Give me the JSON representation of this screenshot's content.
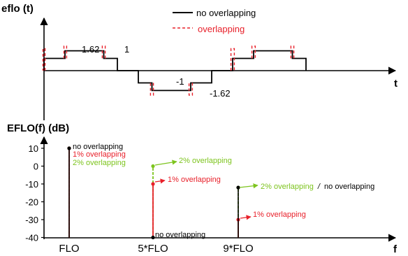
{
  "colors": {
    "no_overlap": "#000000",
    "overlap": "#e8202a",
    "one_pct": "#e8202a",
    "two_pct": "#7dc41e"
  },
  "chart_data": [
    {
      "type": "line",
      "title": "",
      "ylabel": "eflo (t)",
      "xlabel": "t",
      "legend": {
        "placement": "top-center",
        "entries": [
          {
            "key": "no_overlap",
            "label": "no overlapping",
            "style": "solid"
          },
          {
            "key": "overlap",
            "label": "overlapping",
            "style": "dashed"
          }
        ]
      },
      "level_labels": {
        "pos_high": "1.62",
        "pos_low": "1",
        "neg_low": "-1",
        "neg_high": "-1.62"
      },
      "x_range": [
        0,
        12
      ],
      "y_range": [
        -2.1,
        2.1
      ],
      "series": [
        {
          "key": "no_overlap",
          "points": [
            [
              0,
              0
            ],
            [
              0,
              1
            ],
            [
              1,
              1
            ],
            [
              1,
              1.62
            ],
            [
              2.85,
              1.62
            ],
            [
              2.85,
              1
            ],
            [
              3.5,
              1
            ],
            [
              3.5,
              0
            ],
            [
              4.5,
              0
            ],
            [
              4.5,
              -1
            ],
            [
              5.15,
              -1
            ],
            [
              5.15,
              -1.62
            ],
            [
              7,
              -1.62
            ],
            [
              7,
              -1
            ],
            [
              8,
              -1
            ],
            [
              8,
              0
            ],
            [
              9,
              0
            ],
            [
              9,
              1
            ],
            [
              10,
              1
            ],
            [
              10,
              1.62
            ],
            [
              11.85,
              1.62
            ],
            [
              11.85,
              1
            ],
            [
              12.5,
              1
            ],
            [
              12.5,
              0
            ]
          ]
        },
        {
          "key": "overlap",
          "segments": [
            [
              [
                0.05,
                0
              ],
              [
                0.05,
                1.8
              ],
              [
                -0.05,
                1.8
              ],
              [
                -0.05,
                0
              ]
            ],
            [
              [
                1.08,
                1.0
              ],
              [
                1.08,
                2.0
              ],
              [
                0.95,
                2.0
              ],
              [
                0.95,
                1.0
              ]
            ],
            [
              [
                2.92,
                1.0
              ],
              [
                2.92,
                2.0
              ],
              [
                2.78,
                2.0
              ],
              [
                2.78,
                1.0
              ]
            ],
            [
              [
                5.22,
                -1.0
              ],
              [
                5.22,
                -2.0
              ],
              [
                5.08,
                -2.0
              ],
              [
                5.08,
                -1.0
              ]
            ],
            [
              [
                7.08,
                -1.0
              ],
              [
                7.08,
                -2.0
              ],
              [
                6.92,
                -2.0
              ],
              [
                6.92,
                -1.0
              ]
            ],
            [
              [
                8.92,
                0
              ],
              [
                8.92,
                1.8
              ],
              [
                9.08,
                1.8
              ],
              [
                9.08,
                0
              ]
            ],
            [
              [
                9.92,
                1.0
              ],
              [
                9.92,
                2.0
              ],
              [
                10.08,
                2.0
              ],
              [
                10.08,
                1.0
              ]
            ],
            [
              [
                11.78,
                1.0
              ],
              [
                11.78,
                2.0
              ],
              [
                11.92,
                2.0
              ],
              [
                11.92,
                1.0
              ]
            ]
          ]
        }
      ]
    },
    {
      "type": "bar",
      "title": "",
      "ylabel": "EFLO(f) (dB)",
      "xlabel": "f",
      "categories": [
        "FLO",
        "5*FLO",
        "9*FLO"
      ],
      "ylim": [
        -42,
        13
      ],
      "yticks": [
        10,
        0,
        -10,
        -20,
        -30,
        -40
      ],
      "series": [
        {
          "key": "no_overlap",
          "name": "no overlapping",
          "values": [
            10,
            -40,
            -12
          ]
        },
        {
          "key": "one_pct",
          "name": "1% overlapping",
          "values": [
            10,
            -10,
            -30
          ]
        },
        {
          "key": "two_pct",
          "name": "2% overlapping",
          "values": [
            10,
            0,
            -12
          ]
        }
      ],
      "annotations": {
        "flo_stack": [
          "no overlapping",
          "1% overlapping",
          "2% overlapping"
        ],
        "five_two": "2% overlapping",
        "five_one": "1% overlapping",
        "five_none": "no overlapping",
        "nine_two_a": "2% overlapping",
        "nine_two_sep": "/",
        "nine_two_b": "no overlapping",
        "nine_one": "1% overlapping"
      }
    }
  ]
}
